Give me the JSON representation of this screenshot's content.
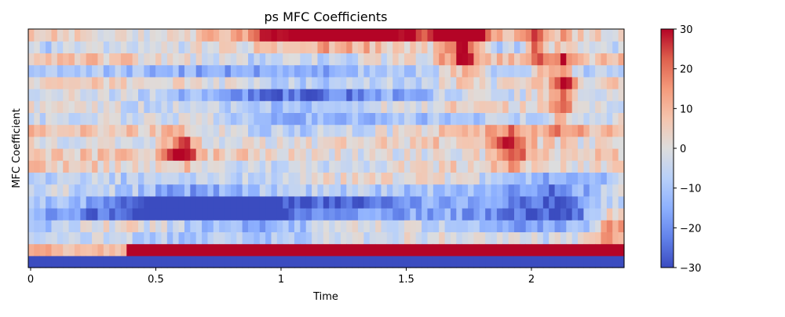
{
  "chart_data": {
    "type": "heatmap",
    "title": "ps MFC Coefficients",
    "xlabel": "Time",
    "ylabel": "MFC Coefficient",
    "x_range": [
      0,
      2.39
    ],
    "x_ticks": [
      0,
      0.5,
      1,
      1.5,
      2
    ],
    "x_tick_labels": [
      "0",
      "0.5",
      "1",
      "1.5",
      "2"
    ],
    "n_coefficients": 20,
    "n_frames": 103,
    "colormap": "coolwarm",
    "colorbar": {
      "vmin": -30,
      "vmax": 30,
      "ticks": [
        30,
        20,
        10,
        0,
        -10,
        -20,
        -30
      ],
      "tick_labels": [
        "30",
        "20",
        "10",
        "0",
        "−10",
        "−20",
        "−30"
      ]
    },
    "grid": false,
    "notes": "Values clipped at ±30; coefficient 0 (bottom row) strongly negative, coefficient 1 strongly positive; strong red blobs near top around t≈0.9-1.5 s and diagonal red streaks near t≈0.4-0.6 s and t≈1.9-2.1 s."
  }
}
